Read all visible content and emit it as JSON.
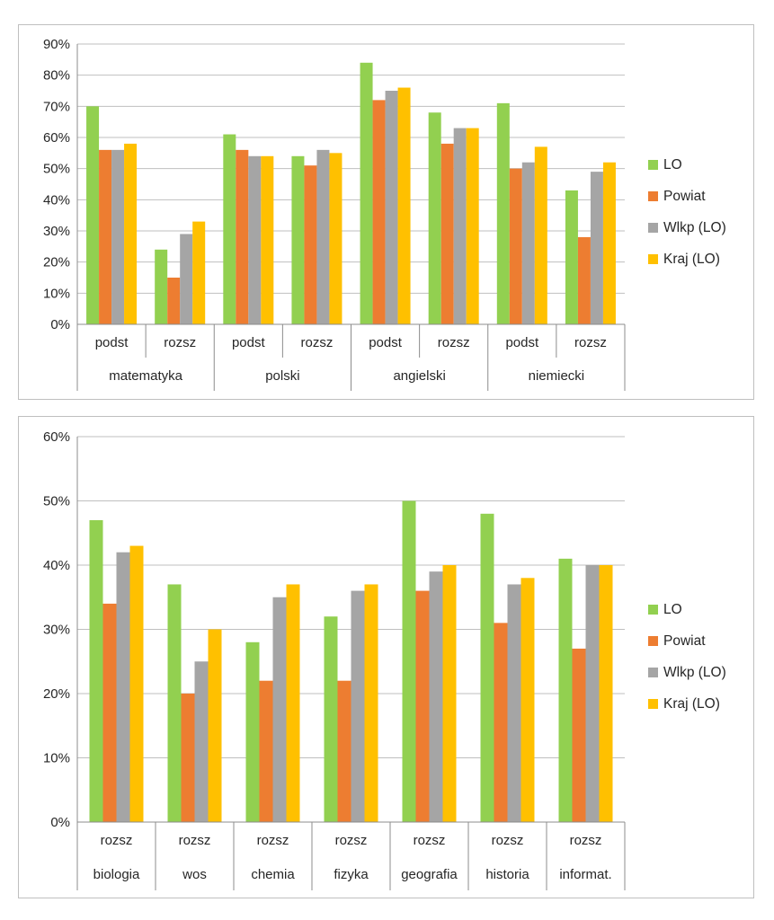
{
  "colors": {
    "LO": "#92d050",
    "Powiat": "#ed7d31",
    "Wlkp (LO)": "#a5a5a5",
    "Kraj (LO)": "#ffc000",
    "grid": "#bfbfbf",
    "axis": "#8c8c8c"
  },
  "chart_data": [
    {
      "type": "bar",
      "title": "",
      "xlabel": "",
      "ylabel": "",
      "ylim": [
        0,
        90
      ],
      "y_ticks": [
        "0%",
        "10%",
        "20%",
        "30%",
        "40%",
        "50%",
        "60%",
        "70%",
        "80%",
        "90%"
      ],
      "grid": true,
      "legend_position": "right",
      "groups": [
        "matematyka",
        "polski",
        "angielski",
        "niemiecki"
      ],
      "categories": [
        "podst",
        "rozsz",
        "podst",
        "rozsz",
        "podst",
        "rozsz",
        "podst",
        "rozsz"
      ],
      "series": [
        {
          "name": "LO",
          "values": [
            70,
            24,
            61,
            54,
            84,
            68,
            71,
            43
          ]
        },
        {
          "name": "Powiat",
          "values": [
            56,
            15,
            56,
            51,
            72,
            58,
            50,
            28
          ]
        },
        {
          "name": "Wlkp (LO)",
          "values": [
            56,
            29,
            54,
            56,
            75,
            63,
            52,
            49
          ]
        },
        {
          "name": "Kraj (LO)",
          "values": [
            58,
            33,
            54,
            55,
            76,
            63,
            57,
            52
          ]
        }
      ]
    },
    {
      "type": "bar",
      "title": "",
      "xlabel": "",
      "ylabel": "",
      "ylim": [
        0,
        60
      ],
      "y_ticks": [
        "0%",
        "10%",
        "20%",
        "30%",
        "40%",
        "50%",
        "60%"
      ],
      "grid": true,
      "legend_position": "right",
      "groups": [
        "biologia",
        "wos",
        "chemia",
        "fizyka",
        "geografia",
        "historia",
        "informat."
      ],
      "categories": [
        "rozsz",
        "rozsz",
        "rozsz",
        "rozsz",
        "rozsz",
        "rozsz",
        "rozsz"
      ],
      "series": [
        {
          "name": "LO",
          "values": [
            47,
            37,
            28,
            32,
            50,
            48,
            41
          ]
        },
        {
          "name": "Powiat",
          "values": [
            34,
            20,
            22,
            22,
            36,
            31,
            27
          ]
        },
        {
          "name": "Wlkp (LO)",
          "values": [
            42,
            25,
            35,
            36,
            39,
            37,
            40
          ]
        },
        {
          "name": "Kraj (LO)",
          "values": [
            43,
            30,
            37,
            37,
            40,
            38,
            40
          ]
        }
      ]
    }
  ]
}
